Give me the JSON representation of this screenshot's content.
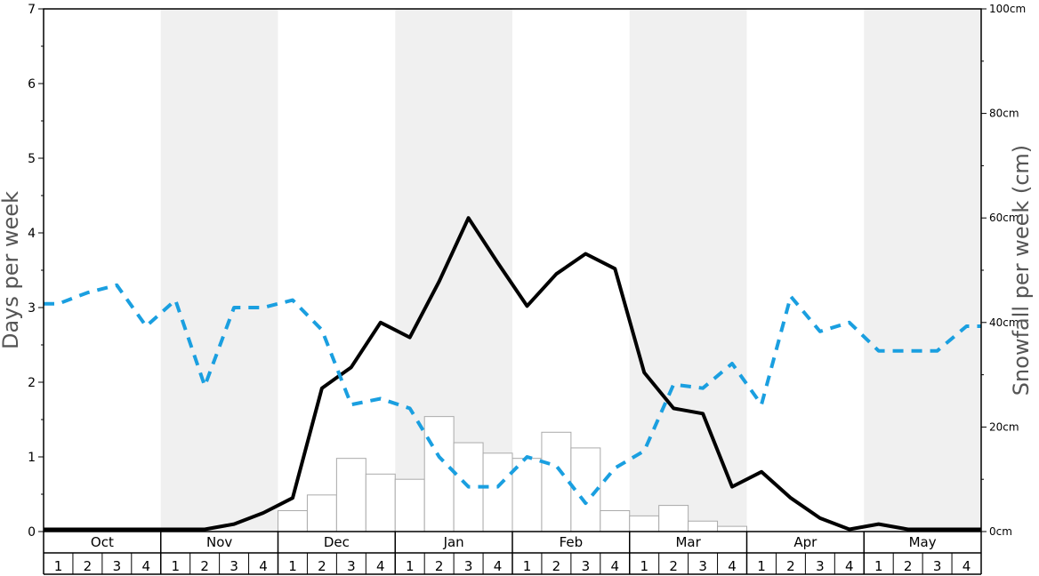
{
  "chart_data": {
    "type": "bar+line",
    "title": "",
    "ylabel_left": "Days per week",
    "ylabel_right": "Snowfall per week (cm)",
    "ylim_left": [
      0,
      7
    ],
    "left_ticks": [
      "0",
      "1",
      "2",
      "3",
      "4",
      "5",
      "6",
      "7"
    ],
    "ylim_right": [
      0,
      100
    ],
    "right_ticks": [
      "0cm",
      "20cm",
      "40cm",
      "60cm",
      "80cm",
      "100cm"
    ],
    "months": [
      "Oct",
      "Nov",
      "Dec",
      "Jan",
      "Feb",
      "Mar",
      "Apr",
      "May"
    ],
    "week_labels": [
      "1",
      "2",
      "3",
      "4"
    ],
    "shaded_months": [
      "Nov",
      "Jan",
      "Mar",
      "May"
    ],
    "grid": false,
    "series": [
      {
        "kind": "bar",
        "axis": "right",
        "values": [
          0,
          0,
          0,
          0,
          0,
          0,
          0,
          0,
          4,
          7,
          14,
          11,
          10,
          22,
          17,
          15,
          14,
          19,
          16,
          4,
          3,
          5,
          2,
          1,
          0,
          0,
          0,
          0,
          0,
          0,
          0,
          0
        ]
      },
      {
        "kind": "line",
        "axis": "left",
        "style": "solid",
        "values": [
          0.03,
          0.03,
          0.03,
          0.03,
          0.03,
          0.03,
          0.1,
          0.25,
          0.45,
          1.92,
          2.2,
          2.8,
          2.6,
          3.35,
          4.2,
          3.6,
          3.02,
          3.45,
          3.72,
          3.52,
          2.13,
          1.65,
          1.58,
          0.6,
          0.8,
          0.45,
          0.18,
          0.03,
          0.1,
          0.03,
          0.03,
          0.03
        ]
      },
      {
        "kind": "line",
        "axis": "left",
        "style": "dashed",
        "values": [
          3.05,
          3.2,
          3.3,
          2.75,
          3.1,
          1.95,
          3.0,
          3.0,
          3.1,
          2.7,
          1.7,
          1.78,
          1.65,
          1.0,
          0.6,
          0.6,
          1.0,
          0.88,
          0.38,
          0.85,
          1.08,
          1.97,
          1.92,
          2.25,
          1.7,
          3.15,
          2.68,
          2.8,
          2.42,
          2.42,
          2.42,
          2.75
        ]
      }
    ],
    "colors": {
      "solid_line": "#000000",
      "dashed_line": "#1a9fe0",
      "bar_fill": "#ffffff",
      "bar_stroke": "#aaaaaa",
      "shade": "#f0f0f0",
      "axis": "#000000",
      "ylabel": "#555555"
    }
  }
}
